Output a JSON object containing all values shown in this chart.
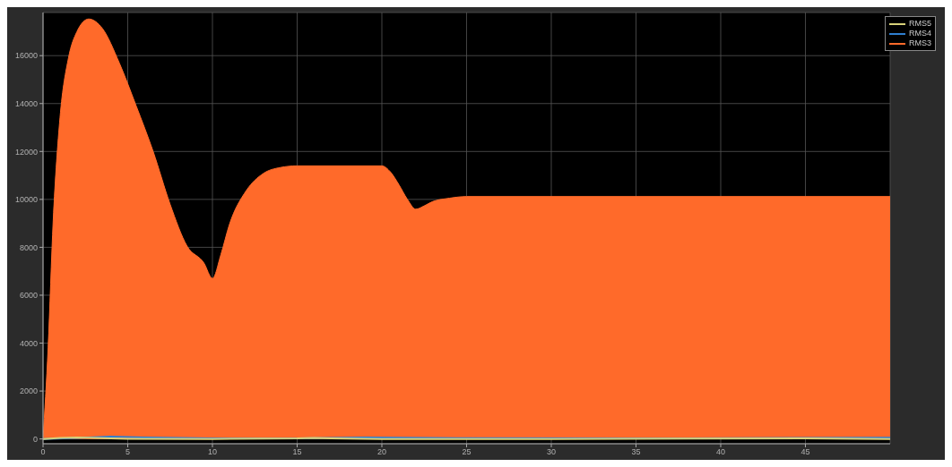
{
  "chart_data": {
    "type": "line",
    "xlim": [
      0,
      50
    ],
    "xticks": [
      0,
      5,
      10,
      15,
      20,
      25,
      30,
      35,
      40,
      45
    ],
    "ylim": [
      -200,
      17800
    ],
    "yticks": [
      0,
      2000,
      4000,
      6000,
      8000,
      10000,
      12000,
      14000,
      16000
    ],
    "grid": true,
    "legend": "top right",
    "series": [
      {
        "name": "RMS5",
        "color": "#d8d27a",
        "x": [
          0,
          1,
          2,
          3,
          5,
          10,
          15,
          16,
          17,
          20,
          30,
          45,
          50
        ],
        "values": [
          0,
          40,
          60,
          40,
          10,
          0,
          20,
          40,
          20,
          0,
          0,
          20,
          0
        ]
      },
      {
        "name": "RMS4",
        "color": "#2f7fd0",
        "x": [
          0,
          2,
          4,
          6,
          10,
          15,
          19,
          25,
          35,
          45,
          50
        ],
        "values": [
          0,
          40,
          100,
          60,
          20,
          20,
          60,
          30,
          20,
          40,
          50
        ]
      },
      {
        "name": "RMS3",
        "type": "area",
        "color": "#ff6a2a",
        "x": [
          0,
          0.3,
          0.6,
          1,
          1.5,
          2,
          2.7,
          3.5,
          4.5,
          5.5,
          6.5,
          7.5,
          8.5,
          9.5,
          10,
          10.5,
          11,
          12,
          13,
          14,
          15,
          20,
          20.5,
          21,
          21.5,
          22,
          22.5,
          23,
          24,
          25,
          50
        ],
        "values": [
          0,
          3800,
          9100,
          13400,
          15900,
          17000,
          17530,
          17140,
          15700,
          13900,
          12000,
          9800,
          8050,
          7340,
          6700,
          7700,
          8950,
          10370,
          11080,
          11330,
          11400,
          11400,
          11150,
          10620,
          10010,
          9590,
          9730,
          9910,
          10050,
          10120,
          10120
        ]
      }
    ]
  }
}
